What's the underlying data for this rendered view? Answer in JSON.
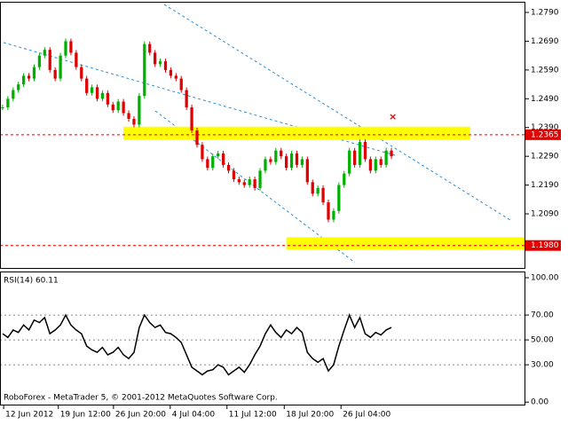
{
  "chart_data": [
    {
      "type": "bar",
      "x": [
        0,
        1,
        2,
        3,
        4,
        5,
        6,
        7,
        8,
        9,
        10,
        11,
        12,
        13,
        14,
        15,
        16,
        17,
        18,
        19,
        20,
        21,
        22,
        23,
        24,
        25,
        26,
        27,
        28,
        29,
        30,
        31,
        32,
        33,
        34,
        35,
        36,
        37,
        38,
        39,
        40,
        41,
        42,
        43,
        44,
        45,
        46,
        47,
        48,
        49,
        50,
        51,
        52,
        53,
        54,
        55,
        56,
        57,
        58,
        59,
        60,
        61,
        62,
        63,
        64,
        65,
        66,
        67,
        68,
        69,
        70,
        71,
        72,
        73,
        74
      ],
      "values": [
        1.246,
        1.249,
        1.252,
        1.254,
        1.257,
        1.256,
        1.26,
        1.264,
        1.266,
        1.259,
        1.256,
        1.264,
        1.269,
        1.265,
        1.26,
        1.256,
        1.251,
        1.253,
        1.249,
        1.251,
        1.247,
        1.245,
        1.248,
        1.244,
        1.242,
        1.24,
        1.25,
        1.268,
        1.265,
        1.261,
        1.262,
        1.259,
        1.257,
        1.256,
        1.252,
        1.246,
        1.238,
        1.233,
        1.228,
        1.225,
        1.229,
        1.23,
        1.226,
        1.224,
        1.221,
        1.22,
        1.219,
        1.221,
        1.218,
        1.224,
        1.228,
        1.227,
        1.231,
        1.229,
        1.225,
        1.23,
        1.226,
        1.228,
        1.22,
        1.216,
        1.218,
        1.213,
        1.207,
        1.21,
        1.219,
        1.223,
        1.231,
        1.226,
        1.234,
        1.228,
        1.224,
        1.228,
        1.226,
        1.231,
        1.229
      ],
      "up_color": "#00b000",
      "down_color": "#e00000",
      "xlim": [
        0,
        100
      ],
      "xticks": [
        {
          "value": 0.7,
          "label": "12 Jun 2012"
        },
        {
          "value": 11.1,
          "label": "19 Jun 12:00"
        },
        {
          "value": 21.6,
          "label": "26 Jun 20:00"
        },
        {
          "value": 32.4,
          "label": "4 Jul 04:00"
        },
        {
          "value": 43.2,
          "label": "11 Jul 12:00"
        },
        {
          "value": 54.1,
          "label": "18 Jul 20:00"
        },
        {
          "value": 64.9,
          "label": "26 Jul 04:00"
        }
      ],
      "ylim": [
        1.1902,
        1.2827
      ],
      "yticks": [
        {
          "value": 1.279,
          "label": "1.2790"
        },
        {
          "value": 1.269,
          "label": "1.2690"
        },
        {
          "value": 1.259,
          "label": "1.2590"
        },
        {
          "value": 1.249,
          "label": "1.2490"
        },
        {
          "value": 1.239,
          "label": "1.2390"
        },
        {
          "value": 1.229,
          "label": "1.2290"
        },
        {
          "value": 1.219,
          "label": "1.2190"
        },
        {
          "value": 1.209,
          "label": "1.2090"
        }
      ],
      "levels": [
        {
          "value": 1.2365,
          "label": "1.2365"
        },
        {
          "value": 1.198,
          "label": "1.1980"
        }
      ],
      "level_color": "#e00000",
      "zones": [
        {
          "low": 1.2347,
          "high": 1.2393,
          "start": 23,
          "end": 89
        },
        {
          "low": 1.1966,
          "high": 1.2009,
          "start": 54,
          "end": 100
        }
      ],
      "zone_color": "#ffff00"
    },
    {
      "type": "line",
      "title": "RSI(14) 60.11",
      "footer": "RoboForex - MetaTrader 5, © 2001-2012 MetaQuotes Software Corp.",
      "x": [
        0,
        1,
        2,
        3,
        4,
        5,
        6,
        7,
        8,
        9,
        10,
        11,
        12,
        13,
        14,
        15,
        16,
        17,
        18,
        19,
        20,
        21,
        22,
        23,
        24,
        25,
        26,
        27,
        28,
        29,
        30,
        31,
        32,
        33,
        34,
        35,
        36,
        37,
        38,
        39,
        40,
        41,
        42,
        43,
        44,
        45,
        46,
        47,
        48,
        49,
        50,
        51,
        52,
        53,
        54,
        55,
        56,
        57,
        58,
        59,
        60,
        61,
        62,
        63,
        64,
        65,
        66,
        67,
        68,
        69,
        70,
        71,
        72,
        73,
        74
      ],
      "values": [
        55,
        52,
        58,
        56,
        62,
        58,
        66,
        64,
        68,
        55,
        58,
        62,
        70,
        62,
        58,
        55,
        45,
        42,
        40,
        44,
        38,
        40,
        44,
        38,
        35,
        40,
        60,
        70,
        64,
        60,
        62,
        56,
        55,
        52,
        48,
        38,
        28,
        25,
        22,
        25,
        26,
        30,
        28,
        22,
        25,
        28,
        24,
        30,
        38,
        45,
        55,
        62,
        56,
        52,
        58,
        55,
        60,
        56,
        40,
        35,
        32,
        35,
        25,
        30,
        45,
        58,
        70,
        60,
        68,
        55,
        52,
        56,
        54,
        58,
        60
      ],
      "color": "#000000",
      "xlim": [
        0,
        100
      ],
      "ylim": [
        -2,
        105
      ],
      "yticks": [
        {
          "value": 100,
          "label": "100.00"
        },
        {
          "value": 70,
          "label": "70.00"
        },
        {
          "value": 50,
          "label": "50.00"
        },
        {
          "value": 30,
          "label": "30.00"
        },
        {
          "value": 0,
          "label": "0.00"
        }
      ]
    }
  ]
}
